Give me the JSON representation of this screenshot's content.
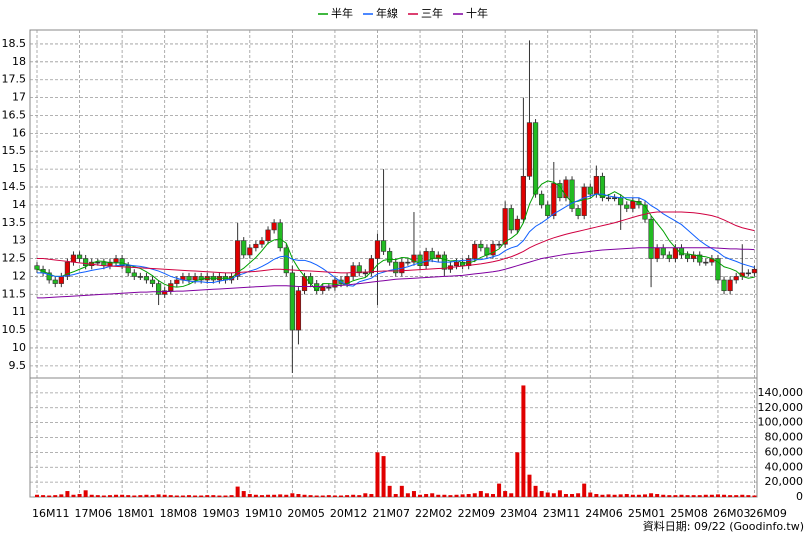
{
  "chart_data": {
    "type": "candlestick",
    "legend": "top",
    "grid": true,
    "source": "資料日期: 09/22  (Goodinfo.tw)",
    "up_color": "#e00000",
    "down_color": "#22bb22",
    "volume_color": "#e00000",
    "categories": [
      "16M11",
      null,
      null,
      null,
      null,
      null,
      null,
      "17M06",
      null,
      null,
      null,
      null,
      null,
      null,
      "18M01",
      null,
      null,
      null,
      null,
      null,
      null,
      "18M08",
      null,
      null,
      null,
      null,
      null,
      null,
      "19M03",
      null,
      null,
      null,
      null,
      null,
      null,
      "19M10",
      null,
      null,
      null,
      null,
      null,
      null,
      "20M05",
      null,
      null,
      null,
      null,
      null,
      null,
      "20M12",
      null,
      null,
      null,
      null,
      null,
      null,
      "21M07",
      null,
      null,
      null,
      null,
      null,
      null,
      "22M02",
      null,
      null,
      null,
      null,
      null,
      null,
      "22M09",
      null,
      null,
      null,
      null,
      null,
      null,
      "23M04",
      null,
      null,
      null,
      null,
      null,
      null,
      "23M11",
      null,
      null,
      null,
      null,
      null,
      null,
      "24M06",
      null,
      null,
      null,
      null,
      null,
      null,
      "25M01",
      null,
      null,
      null,
      null,
      null,
      null,
      "25M08",
      null,
      null,
      null,
      null,
      null,
      null,
      "26M03",
      null,
      null,
      null,
      null,
      null,
      "26M09"
    ],
    "open": [
      12.3,
      12.2,
      12.1,
      11.9,
      11.8,
      12.0,
      12.4,
      12.6,
      12.5,
      12.3,
      12.4,
      12.4,
      12.3,
      12.4,
      12.5,
      12.3,
      12.1,
      12.0,
      12.0,
      11.9,
      11.8,
      11.5,
      11.6,
      11.8,
      11.9,
      12.0,
      11.9,
      12.0,
      11.9,
      12.0,
      11.9,
      12.0,
      11.9,
      12.0,
      13.0,
      12.6,
      12.8,
      12.9,
      13.0,
      13.3,
      13.5,
      12.8,
      12.1,
      10.5,
      11.6,
      12.0,
      11.8,
      11.6,
      11.7,
      11.7,
      11.9,
      11.8,
      12.0,
      12.3,
      12.1,
      12.1,
      12.5,
      13.0,
      12.7,
      12.4,
      12.1,
      12.4,
      12.4,
      12.6,
      12.3,
      12.7,
      12.5,
      12.6,
      12.2,
      12.3,
      12.4,
      12.3,
      12.5,
      12.9,
      12.8,
      12.6,
      12.9,
      12.9,
      13.9,
      13.3,
      13.6,
      14.8,
      16.3,
      14.3,
      14.0,
      13.7,
      14.6,
      14.2,
      14.7,
      13.9,
      13.7,
      14.5,
      14.3,
      14.8,
      14.2,
      14.2,
      14.2,
      14.0,
      13.9,
      14.1,
      14.0,
      13.6,
      12.5,
      12.8,
      12.6,
      12.5,
      12.8,
      12.6,
      12.5,
      12.6,
      12.4,
      12.4,
      12.5,
      11.9,
      11.6,
      11.9,
      12.0,
      12.1,
      12.1
    ],
    "high": [
      12.4,
      12.3,
      12.2,
      12.0,
      12.1,
      12.5,
      12.7,
      12.7,
      12.6,
      12.5,
      12.5,
      12.5,
      12.5,
      12.6,
      12.6,
      12.4,
      12.2,
      12.1,
      12.1,
      12.0,
      11.9,
      11.7,
      11.9,
      12.0,
      12.1,
      12.1,
      12.1,
      12.1,
      12.1,
      12.1,
      12.1,
      12.1,
      12.1,
      13.5,
      13.1,
      12.9,
      13.0,
      13.1,
      13.4,
      13.6,
      13.6,
      12.9,
      12.3,
      11.7,
      12.1,
      12.1,
      11.9,
      11.8,
      11.8,
      12.0,
      12.0,
      12.1,
      12.4,
      12.4,
      12.2,
      12.6,
      13.2,
      15.0,
      12.8,
      12.5,
      12.5,
      12.5,
      13.8,
      12.7,
      12.8,
      12.8,
      12.7,
      12.7,
      12.4,
      12.5,
      12.5,
      12.6,
      13.0,
      13.0,
      12.9,
      13.0,
      13.0,
      14.1,
      14.0,
      13.7,
      17.0,
      18.6,
      16.4,
      14.4,
      14.1,
      15.2,
      14.7,
      14.8,
      14.8,
      14.0,
      14.6,
      14.6,
      15.1,
      14.9,
      14.3,
      14.3,
      14.3,
      14.1,
      14.2,
      14.2,
      14.1,
      13.7,
      12.9,
      12.9,
      12.7,
      12.9,
      12.9,
      12.7,
      12.7,
      12.7,
      12.5,
      12.6,
      12.6,
      12.0,
      12.0,
      12.1,
      12.9,
      12.2,
      12.3
    ],
    "low": [
      12.1,
      12.0,
      11.8,
      11.7,
      11.7,
      11.9,
      12.3,
      12.4,
      12.2,
      12.2,
      12.3,
      12.2,
      12.2,
      12.3,
      12.2,
      12.0,
      11.9,
      11.9,
      11.8,
      11.7,
      11.2,
      11.4,
      11.5,
      11.7,
      11.8,
      11.8,
      11.8,
      11.8,
      11.8,
      11.8,
      11.8,
      11.8,
      11.8,
      11.9,
      12.5,
      12.5,
      12.7,
      12.8,
      12.9,
      13.2,
      12.7,
      12.0,
      9.3,
      10.1,
      11.5,
      11.7,
      11.5,
      11.5,
      11.6,
      11.6,
      11.7,
      11.7,
      11.9,
      12.0,
      12.0,
      12.0,
      11.2,
      12.6,
      12.3,
      12.0,
      12.0,
      12.3,
      12.3,
      12.2,
      12.2,
      12.4,
      12.4,
      12.0,
      12.1,
      12.2,
      12.2,
      12.2,
      12.4,
      12.7,
      12.5,
      12.5,
      12.8,
      12.8,
      13.2,
      13.2,
      13.5,
      14.7,
      14.2,
      13.9,
      13.6,
      13.6,
      14.1,
      14.1,
      13.8,
      13.6,
      13.6,
      14.2,
      14.2,
      14.1,
      14.1,
      14.1,
      13.3,
      13.8,
      13.8,
      13.9,
      13.5,
      11.7,
      12.4,
      12.5,
      12.4,
      12.4,
      12.5,
      12.4,
      12.4,
      12.3,
      12.3,
      12.3,
      11.8,
      11.5,
      11.5,
      11.8,
      11.9,
      12.0,
      12.0
    ],
    "close": [
      12.2,
      12.1,
      11.9,
      11.8,
      12.0,
      12.4,
      12.6,
      12.5,
      12.3,
      12.4,
      12.4,
      12.3,
      12.4,
      12.5,
      12.3,
      12.1,
      12.0,
      12.0,
      11.9,
      11.8,
      11.5,
      11.6,
      11.8,
      11.9,
      12.0,
      11.9,
      12.0,
      11.9,
      12.0,
      11.9,
      12.0,
      11.9,
      12.0,
      13.0,
      12.6,
      12.8,
      12.9,
      13.0,
      13.3,
      13.5,
      12.8,
      12.1,
      10.5,
      11.6,
      12.0,
      11.8,
      11.6,
      11.7,
      11.7,
      11.9,
      11.8,
      12.0,
      12.3,
      12.1,
      12.1,
      12.5,
      13.0,
      12.7,
      12.4,
      12.1,
      12.4,
      12.4,
      12.6,
      12.3,
      12.7,
      12.5,
      12.6,
      12.2,
      12.3,
      12.4,
      12.3,
      12.5,
      12.9,
      12.8,
      12.6,
      12.9,
      12.9,
      13.9,
      13.3,
      13.6,
      14.8,
      16.3,
      14.3,
      14.0,
      13.7,
      14.6,
      14.2,
      14.7,
      13.9,
      13.7,
      14.5,
      14.3,
      14.8,
      14.2,
      14.2,
      14.2,
      14.0,
      13.9,
      14.1,
      14.0,
      13.6,
      12.5,
      12.8,
      12.6,
      12.5,
      12.8,
      12.6,
      12.5,
      12.6,
      12.4,
      12.4,
      12.5,
      11.9,
      11.6,
      11.9,
      12.0,
      12.1,
      12.1,
      12.2
    ],
    "volume": [
      3000,
      2500,
      2000,
      2500,
      3500,
      8000,
      3000,
      4000,
      9000,
      3000,
      2500,
      2000,
      2500,
      3000,
      3000,
      2500,
      2000,
      2500,
      3000,
      2500,
      3500,
      3000,
      2500,
      2000,
      2000,
      2500,
      2000,
      2000,
      2500,
      2500,
      2000,
      2000,
      2500,
      14000,
      8000,
      4000,
      3000,
      2500,
      3000,
      3000,
      3500,
      3000,
      5000,
      4000,
      3000,
      2500,
      2000,
      2000,
      2500,
      2000,
      2000,
      2500,
      3000,
      2500,
      5000,
      4000,
      60000,
      55000,
      15000,
      4000,
      15000,
      5000,
      8000,
      3000,
      4000,
      5000,
      3000,
      3000,
      2500,
      3000,
      3500,
      4000,
      5000,
      8000,
      5000,
      4000,
      18000,
      8000,
      5000,
      60000,
      150000,
      30000,
      15000,
      8000,
      6000,
      5000,
      9000,
      4000,
      4000,
      5000,
      18000,
      6000,
      4000,
      3000,
      3500,
      3000,
      3500,
      4000,
      3000,
      3000,
      3500,
      5000,
      4000,
      3000,
      2500,
      2500,
      3000,
      2500,
      2500,
      2500,
      3000,
      3000,
      3500,
      3000,
      2500,
      2500,
      3000,
      2500,
      2000
    ],
    "ylim": [
      9.16,
      18.89
    ],
    "yticks": [
      9.5,
      10,
      10.5,
      11,
      11.5,
      12,
      12.5,
      13,
      13.5,
      14,
      14.5,
      15,
      15.5,
      16,
      16.5,
      17,
      17.5,
      18,
      18.5
    ],
    "volume_ylim": [
      0,
      160000
    ],
    "volume_yticks": [
      0,
      {
        "value": 20000,
        "label": "20,000"
      },
      {
        "value": 40000,
        "label": "40,000"
      },
      {
        "value": 60000,
        "label": "60,000"
      },
      {
        "value": 80000,
        "label": "80,000"
      },
      {
        "value": 100000,
        "label": "100,000"
      },
      {
        "value": 120000,
        "label": "120,000"
      },
      {
        "value": 140000,
        "label": "140,000"
      }
    ],
    "series": [
      {
        "name": "半年",
        "color": "#00a000",
        "values": [
          12.2,
          12.15,
          12.07,
          12.0,
          12.0,
          12.07,
          12.13,
          12.2,
          12.27,
          12.37,
          12.43,
          12.42,
          12.38,
          12.38,
          12.38,
          12.33,
          12.27,
          12.22,
          12.13,
          12.02,
          11.88,
          11.78,
          11.72,
          11.7,
          11.72,
          11.78,
          11.87,
          11.92,
          11.95,
          11.95,
          11.95,
          11.95,
          11.95,
          12.12,
          12.23,
          12.38,
          12.53,
          12.72,
          12.93,
          13.02,
          13.05,
          12.93,
          12.5,
          12.22,
          12.0,
          11.8,
          11.6,
          11.8,
          11.8,
          11.78,
          11.75,
          11.8,
          11.88,
          11.93,
          11.97,
          12.13,
          12.33,
          12.45,
          12.48,
          12.47,
          12.53,
          12.52,
          12.43,
          12.37,
          12.42,
          12.5,
          12.52,
          12.48,
          12.43,
          12.45,
          12.38,
          12.38,
          12.43,
          12.53,
          12.6,
          12.67,
          12.77,
          12.97,
          13.07,
          13.2,
          13.5,
          14.02,
          14.37,
          14.58,
          14.67,
          14.63,
          14.52,
          14.25,
          14.07,
          14.1,
          14.15,
          14.18,
          14.32,
          14.23,
          14.28,
          14.37,
          14.28,
          14.15,
          14.12,
          14.07,
          13.97,
          13.7,
          13.48,
          13.27,
          13.0,
          12.8,
          12.63,
          12.63,
          12.6,
          12.57,
          12.55,
          12.5,
          12.4,
          12.27,
          12.22,
          12.15,
          12.0,
          11.95,
          11.98
        ]
      },
      {
        "name": "年線",
        "color": "#1060ff",
        "values": [
          12.1,
          12.1,
          12.05,
          12.0,
          12.0,
          12.02,
          12.05,
          12.1,
          12.13,
          12.17,
          12.2,
          12.23,
          12.28,
          12.3,
          12.32,
          12.32,
          12.3,
          12.28,
          12.25,
          12.2,
          12.15,
          12.08,
          12.0,
          11.95,
          11.9,
          11.87,
          11.85,
          11.85,
          11.83,
          11.83,
          11.87,
          11.9,
          11.93,
          12.03,
          12.08,
          12.15,
          12.2,
          12.28,
          12.37,
          12.48,
          12.55,
          12.57,
          12.48,
          12.45,
          12.45,
          12.4,
          12.32,
          12.22,
          12.1,
          11.97,
          11.85,
          11.75,
          11.73,
          11.85,
          11.9,
          11.95,
          12.07,
          12.12,
          12.17,
          12.2,
          12.23,
          12.27,
          12.33,
          12.38,
          12.43,
          12.43,
          12.4,
          12.4,
          12.4,
          12.43,
          12.45,
          12.45,
          12.47,
          12.47,
          12.5,
          12.55,
          12.6,
          12.72,
          12.8,
          12.85,
          13.0,
          13.25,
          13.4,
          13.5,
          13.62,
          13.75,
          13.85,
          13.95,
          14.05,
          14.12,
          14.2,
          14.25,
          14.3,
          14.3,
          14.25,
          14.22,
          14.2,
          14.2,
          14.2,
          14.2,
          14.12,
          13.98,
          13.88,
          13.75,
          13.65,
          13.55,
          13.45,
          13.3,
          13.15,
          13.0,
          12.88,
          12.78,
          12.68,
          12.55,
          12.48,
          12.42,
          12.35,
          12.3,
          12.25
        ]
      },
      {
        "name": "三年",
        "color": "#d00040",
        "values": [
          12.5,
          12.5,
          12.48,
          12.46,
          12.44,
          12.42,
          12.4,
          12.38,
          12.36,
          12.34,
          12.32,
          12.3,
          12.29,
          12.28,
          12.27,
          12.26,
          12.25,
          12.24,
          12.23,
          12.22,
          12.21,
          12.2,
          12.19,
          12.18,
          12.17,
          12.16,
          12.15,
          12.14,
          12.13,
          12.12,
          12.11,
          12.1,
          12.1,
          12.11,
          12.12,
          12.13,
          12.14,
          12.16,
          12.18,
          12.2,
          12.2,
          12.19,
          12.18,
          12.17,
          12.16,
          12.15,
          12.14,
          12.13,
          12.12,
          12.11,
          12.1,
          12.1,
          12.11,
          12.12,
          12.12,
          12.13,
          12.14,
          12.15,
          12.15,
          12.15,
          12.16,
          12.17,
          12.18,
          12.19,
          12.2,
          12.21,
          12.22,
          12.23,
          12.25,
          12.27,
          12.29,
          12.31,
          12.33,
          12.35,
          12.38,
          12.41,
          12.45,
          12.5,
          12.55,
          12.62,
          12.7,
          12.8,
          12.88,
          12.95,
          13.02,
          13.08,
          13.13,
          13.18,
          13.22,
          13.26,
          13.3,
          13.34,
          13.38,
          13.42,
          13.46,
          13.5,
          13.55,
          13.6,
          13.65,
          13.7,
          13.74,
          13.78,
          13.8,
          13.8,
          13.8,
          13.8,
          13.8,
          13.79,
          13.78,
          13.76,
          13.73,
          13.7,
          13.65,
          13.58,
          13.5,
          13.42,
          13.36,
          13.32,
          13.28
        ]
      },
      {
        "name": "十年",
        "color": "#8000a0",
        "values": [
          11.4,
          11.4,
          11.41,
          11.42,
          11.43,
          11.44,
          11.45,
          11.46,
          11.47,
          11.48,
          11.49,
          11.5,
          11.51,
          11.52,
          11.53,
          11.54,
          11.55,
          11.56,
          11.56,
          11.57,
          11.57,
          11.58,
          11.58,
          11.59,
          11.59,
          11.6,
          11.61,
          11.62,
          11.63,
          11.64,
          11.65,
          11.66,
          11.67,
          11.68,
          11.69,
          11.7,
          11.71,
          11.72,
          11.73,
          11.74,
          11.74,
          11.74,
          11.73,
          11.72,
          11.72,
          11.72,
          11.72,
          11.72,
          11.73,
          11.74,
          11.75,
          11.76,
          11.78,
          11.8,
          11.82,
          11.84,
          11.86,
          11.88,
          11.9,
          11.92,
          11.93,
          11.94,
          11.95,
          11.96,
          11.97,
          11.98,
          11.99,
          12.0,
          12.01,
          12.02,
          12.03,
          12.05,
          12.07,
          12.09,
          12.11,
          12.13,
          12.16,
          12.2,
          12.25,
          12.3,
          12.35,
          12.4,
          12.45,
          12.5,
          12.53,
          12.56,
          12.59,
          12.62,
          12.64,
          12.66,
          12.68,
          12.7,
          12.72,
          12.74,
          12.75,
          12.76,
          12.77,
          12.78,
          12.79,
          12.8,
          12.8,
          12.8,
          12.8,
          12.8,
          12.8,
          12.8,
          12.8,
          12.8,
          12.8,
          12.8,
          12.8,
          12.8,
          12.79,
          12.78,
          12.77,
          12.77,
          12.76,
          12.76,
          12.75
        ]
      }
    ]
  }
}
